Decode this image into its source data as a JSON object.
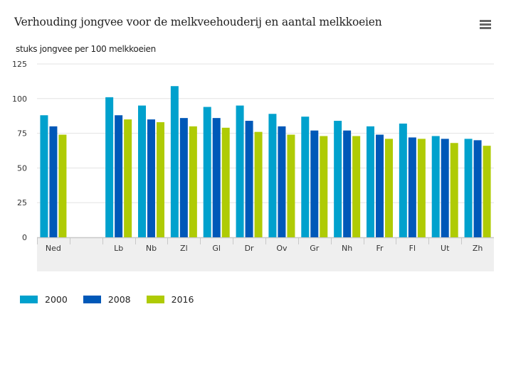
{
  "header": {
    "title": "Verhouding jongvee voor de melkveehouderij en aantal melkkoeien",
    "menu_icon": "hamburger-menu-icon"
  },
  "colors": {
    "2000": "#00a1cd",
    "2008": "#0058b8",
    "2016": "#afcb05",
    "grid": "#e3e3e3",
    "xaxis_band": "#efefef"
  },
  "chart_data": {
    "type": "bar",
    "title": "Verhouding jongvee voor de melkveehouderij en aantal melkkoeien",
    "xlabel": "",
    "ylabel": "stuks jongvee per 100 melkkoeien",
    "ylim": [
      0,
      125
    ],
    "yticks": [
      0,
      25,
      50,
      75,
      100,
      125
    ],
    "grid": true,
    "legend_position": "bottom-left",
    "categories": [
      "Ned",
      "",
      "Lb",
      "Nb",
      "Zl",
      "Gl",
      "Dr",
      "Ov",
      "Gr",
      "Nh",
      "Fr",
      "Fl",
      "Ut",
      "Zh"
    ],
    "series": [
      {
        "name": "2000",
        "color": "#00a1cd",
        "values": [
          88,
          null,
          101,
          95,
          109,
          94,
          95,
          89,
          87,
          84,
          80,
          82,
          73,
          71
        ]
      },
      {
        "name": "2008",
        "color": "#0058b8",
        "values": [
          80,
          null,
          88,
          85,
          86,
          86,
          84,
          80,
          77,
          77,
          74,
          72,
          71,
          70
        ]
      },
      {
        "name": "2016",
        "color": "#afcb05",
        "values": [
          74,
          null,
          85,
          83,
          80,
          79,
          76,
          74,
          73,
          73,
          71,
          71,
          68,
          66
        ]
      }
    ]
  },
  "legend": [
    {
      "label": "2000",
      "color": "#00a1cd"
    },
    {
      "label": "2008",
      "color": "#0058b8"
    },
    {
      "label": "2016",
      "color": "#afcb05"
    }
  ]
}
